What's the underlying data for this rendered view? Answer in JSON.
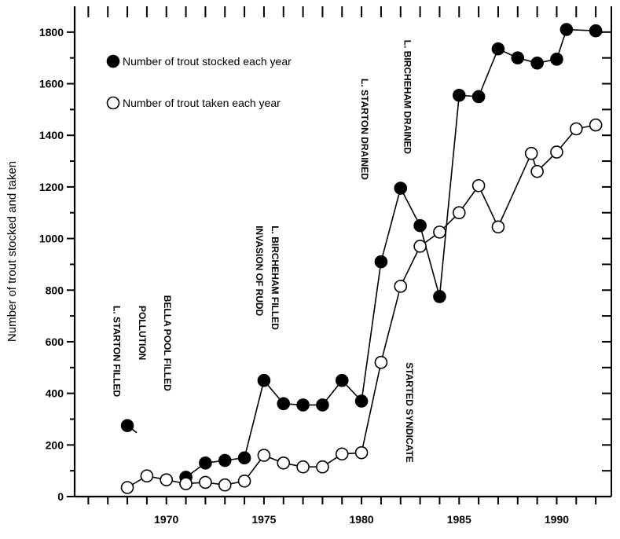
{
  "chart_data": {
    "type": "line",
    "ylabel": "Number of trout stocked and taken",
    "xlabel": "",
    "xlim": [
      1965.3,
      1992.8
    ],
    "ylim": [
      0,
      1900
    ],
    "x_ticks": [
      1970,
      1975,
      1980,
      1985,
      1990
    ],
    "y_ticks": [
      0,
      200,
      400,
      600,
      800,
      1000,
      1200,
      1400,
      1600,
      1800
    ],
    "series": [
      {
        "name": "Number of trout stocked each year",
        "marker": "filled-circle",
        "points": [
          {
            "x": 1968,
            "y": 275
          },
          {
            "x": 1971,
            "y": 75
          },
          {
            "x": 1972,
            "y": 130
          },
          {
            "x": 1973,
            "y": 140
          },
          {
            "x": 1974,
            "y": 150
          },
          {
            "x": 1975,
            "y": 450
          },
          {
            "x": 1976,
            "y": 360
          },
          {
            "x": 1977,
            "y": 355
          },
          {
            "x": 1978,
            "y": 355
          },
          {
            "x": 1979,
            "y": 450
          },
          {
            "x": 1980,
            "y": 370
          },
          {
            "x": 1981,
            "y": 910
          },
          {
            "x": 1982,
            "y": 1195
          },
          {
            "x": 1983,
            "y": 1050
          },
          {
            "x": 1984,
            "y": 775
          },
          {
            "x": 1985,
            "y": 1555
          },
          {
            "x": 1986,
            "y": 1550
          },
          {
            "x": 1987,
            "y": 1735
          },
          {
            "x": 1988,
            "y": 1700
          },
          {
            "x": 1989,
            "y": 1680
          },
          {
            "x": 1990,
            "y": 1695
          },
          {
            "x": 1990.5,
            "y": 1810
          },
          {
            "x": 1992,
            "y": 1805
          }
        ],
        "segments": [
          [
            0,
            0
          ],
          [
            1,
            22
          ]
        ]
      },
      {
        "name": "Number of trout taken each year",
        "marker": "open-circle",
        "points": [
          {
            "x": 1968,
            "y": 35
          },
          {
            "x": 1969,
            "y": 80
          },
          {
            "x": 1970,
            "y": 65
          },
          {
            "x": 1971,
            "y": 50
          },
          {
            "x": 1972,
            "y": 55
          },
          {
            "x": 1973,
            "y": 45
          },
          {
            "x": 1974,
            "y": 60
          },
          {
            "x": 1975,
            "y": 160
          },
          {
            "x": 1976,
            "y": 130
          },
          {
            "x": 1977,
            "y": 115
          },
          {
            "x": 1978,
            "y": 115
          },
          {
            "x": 1979,
            "y": 165
          },
          {
            "x": 1980,
            "y": 170
          },
          {
            "x": 1981,
            "y": 520
          },
          {
            "x": 1982,
            "y": 815
          },
          {
            "x": 1983,
            "y": 970
          },
          {
            "x": 1984,
            "y": 1025
          },
          {
            "x": 1985,
            "y": 1100
          },
          {
            "x": 1986,
            "y": 1205
          },
          {
            "x": 1987,
            "y": 1045
          },
          {
            "x": 1988.7,
            "y": 1330
          },
          {
            "x": 1989,
            "y": 1260
          },
          {
            "x": 1990,
            "y": 1335
          },
          {
            "x": 1991,
            "y": 1425
          },
          {
            "x": 1992,
            "y": 1440
          }
        ],
        "segments": [
          [
            0,
            24
          ]
        ]
      }
    ],
    "legend": {
      "position": "top-left",
      "entries": [
        {
          "label": "Number of trout stocked each year",
          "marker": "filled-circle"
        },
        {
          "label": "Number of trout taken each year",
          "marker": "open-circle"
        }
      ]
    },
    "annotations": [
      {
        "text": "L. STARTON FILLED",
        "x": 1967.3,
        "y": 740
      },
      {
        "text": "POLLUTION",
        "x": 1968.6,
        "y": 740
      },
      {
        "text": "BELLA POOL FILLED",
        "x": 1969.9,
        "y": 780
      },
      {
        "text": "L. BIRCHEHAM FILLED",
        "x": 1975.4,
        "y": 1050
      },
      {
        "text": "INVASION OF RUDD",
        "x": 1974.6,
        "y": 1050
      },
      {
        "text": "L. STARTON DRAINED",
        "x": 1980.0,
        "y": 1620
      },
      {
        "text": "L. BIRCHEHAM DRAINED",
        "x": 1982.2,
        "y": 1770
      },
      {
        "text": "STARTED SYNDICATE",
        "x": 1982.3,
        "y": 520
      }
    ]
  }
}
